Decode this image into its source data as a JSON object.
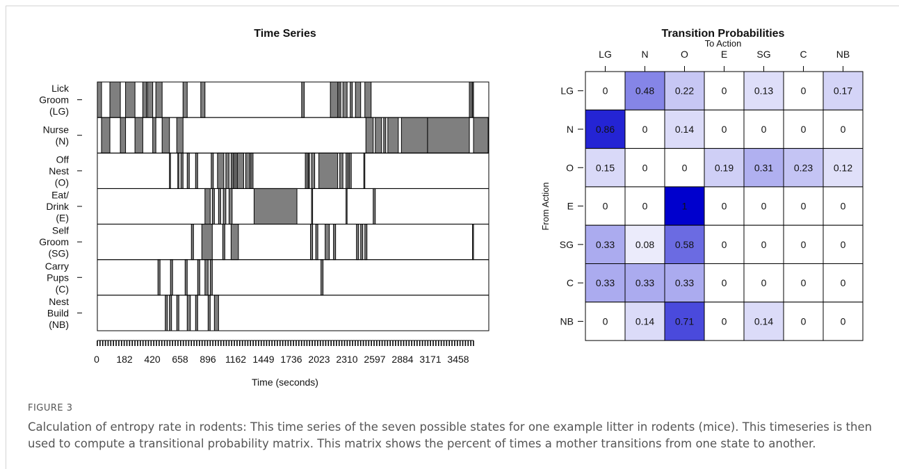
{
  "figure": {
    "label": "FIGURE 3",
    "caption": "Calculation of entropy rate in rodents: This time series of the seven possible states for one example litter in rodents (mice). This timeseries is then used to compute a transitional probability matrix. This matrix shows the percent of times a mother transitions from one state to another."
  },
  "chart_data": [
    {
      "type": "timeline",
      "title": "Time Series",
      "xlabel": "Time (seconds)",
      "ylabel": "",
      "xlim": [
        0,
        3746
      ],
      "x_ticks": [
        0,
        182,
        420,
        658,
        896,
        1162,
        1449,
        1736,
        2023,
        2310,
        2597,
        2884,
        3171,
        3458
      ],
      "states": [
        {
          "label": [
            "Lick",
            "Groom",
            "(LG)"
          ],
          "intervals": [
            [
              0,
              40
            ],
            [
              120,
              220
            ],
            [
              270,
              360
            ],
            [
              435,
              470
            ],
            [
              480,
              530
            ],
            [
              560,
              620
            ],
            [
              820,
              860
            ],
            [
              990,
              1030
            ],
            [
              1955,
              1980
            ],
            [
              2230,
              2300
            ],
            [
              2310,
              2330
            ],
            [
              2350,
              2390
            ],
            [
              2420,
              2440
            ],
            [
              2470,
              2520
            ],
            [
              2560,
              2620
            ],
            [
              3560,
              3580
            ],
            [
              3590,
              3600
            ]
          ]
        },
        {
          "label": [
            "Nurse",
            "(N)"
          ],
          "intervals": [
            [
              40,
              120
            ],
            [
              220,
              270
            ],
            [
              360,
              435
            ],
            [
              530,
              560
            ],
            [
              620,
              690
            ],
            [
              760,
              820
            ],
            [
              2570,
              2640
            ],
            [
              2660,
              2720
            ],
            [
              2740,
              2760
            ],
            [
              2780,
              2880
            ],
            [
              2910,
              3160
            ],
            [
              3160,
              3560
            ],
            [
              3600,
              3740
            ]
          ]
        },
        {
          "label": [
            "Off",
            "Nest",
            "(O)"
          ],
          "intervals": [
            [
              690,
              700
            ],
            [
              770,
              780
            ],
            [
              800,
              820
            ],
            [
              860,
              880
            ],
            [
              940,
              960
            ],
            [
              1090,
              1110
            ],
            [
              1150,
              1210
            ],
            [
              1230,
              1260
            ],
            [
              1280,
              1300
            ],
            [
              1310,
              1330
            ],
            [
              1340,
              1400
            ],
            [
              1420,
              1460
            ],
            [
              1470,
              1490
            ],
            [
              1990,
              2010
            ],
            [
              2020,
              2030
            ],
            [
              2050,
              2080
            ],
            [
              2120,
              2300
            ],
            [
              2320,
              2350
            ],
            [
              2380,
              2400
            ],
            [
              2410,
              2430
            ],
            [
              2550,
              2560
            ]
          ]
        },
        {
          "label": [
            "Eat/",
            "Drink",
            "(E)"
          ],
          "intervals": [
            [
              1030,
              1080
            ],
            [
              1100,
              1120
            ],
            [
              1160,
              1180
            ],
            [
              1205,
              1230
            ],
            [
              1260,
              1290
            ],
            [
              1500,
              1910
            ],
            [
              2050,
              2060
            ],
            [
              2380,
              2390
            ],
            [
              2640,
              2660
            ]
          ]
        },
        {
          "label": [
            "Self",
            "Groom",
            "(SG)"
          ],
          "intervals": [
            [
              900,
              920
            ],
            [
              1000,
              1100
            ],
            [
              1200,
              1220
            ],
            [
              1280,
              1350
            ],
            [
              2040,
              2060
            ],
            [
              2090,
              2110
            ],
            [
              2180,
              2220
            ],
            [
              2260,
              2280
            ],
            [
              2480,
              2500
            ],
            [
              2520,
              2540
            ],
            [
              2560,
              2580
            ],
            [
              3590,
              3600
            ]
          ]
        },
        {
          "label": [
            "Carry",
            "Pups",
            "(C)"
          ],
          "intervals": [
            [
              580,
              600
            ],
            [
              700,
              720
            ],
            [
              840,
              860
            ],
            [
              960,
              980
            ],
            [
              1030,
              1060
            ],
            [
              1080,
              1100
            ],
            [
              2140,
              2160
            ]
          ]
        },
        {
          "label": [
            "Nest",
            "Build",
            "(NB)"
          ],
          "intervals": [
            [
              650,
              670
            ],
            [
              690,
              710
            ],
            [
              760,
              780
            ],
            [
              860,
              890
            ],
            [
              940,
              960
            ],
            [
              1060,
              1080
            ],
            [
              1120,
              1160
            ]
          ]
        }
      ]
    },
    {
      "type": "heatmap",
      "title": "Transition Probabilities",
      "xlabel": "To Action",
      "ylabel": "From Action",
      "columns": [
        "LG",
        "N",
        "O",
        "E",
        "SG",
        "C",
        "NB"
      ],
      "rows": [
        "LG",
        "N",
        "O",
        "E",
        "SG",
        "C",
        "NB"
      ],
      "values": [
        [
          "0",
          "0.48",
          "0.22",
          "0",
          "0.13",
          "0",
          "0.17"
        ],
        [
          "0.86",
          "0",
          "0.14",
          "0",
          "0",
          "0",
          "0"
        ],
        [
          "0.15",
          "0",
          "0",
          "0.19",
          "0.31",
          "0.23",
          "0.12"
        ],
        [
          "0",
          "0",
          "1",
          "0",
          "0",
          "0",
          "0"
        ],
        [
          "0.33",
          "0.08",
          "0.58",
          "0",
          "0",
          "0",
          "0"
        ],
        [
          "0.33",
          "0.33",
          "0.33",
          "0",
          "0",
          "0",
          "0"
        ],
        [
          "0",
          "0.14",
          "0.71",
          "0",
          "0.14",
          "0",
          "0"
        ]
      ],
      "color_low": "#ffffff",
      "color_high": "#0000cd"
    }
  ]
}
